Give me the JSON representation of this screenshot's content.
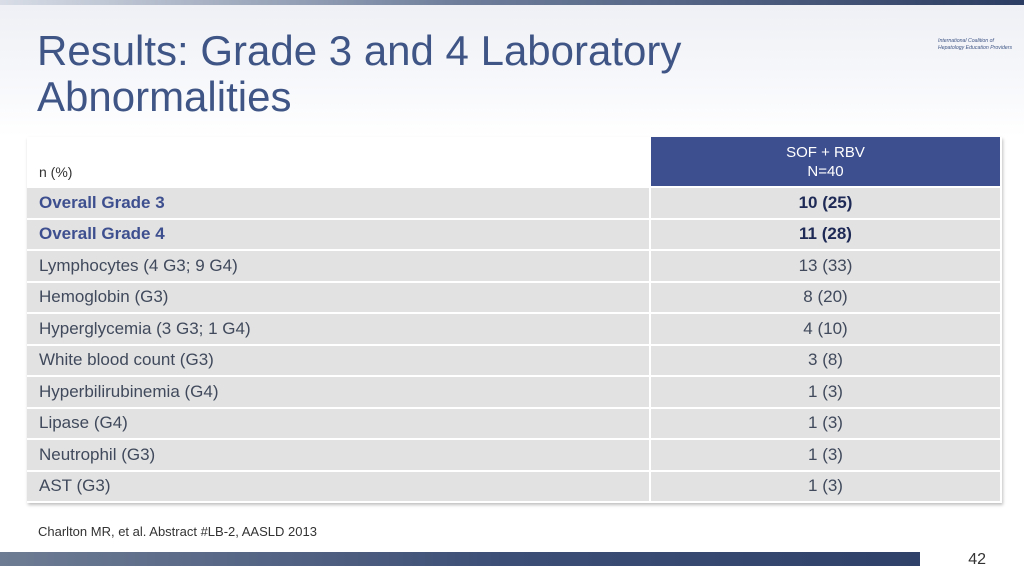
{
  "slide": {
    "title": "Results: Grade 3 and 4 Laboratory Abnormalities",
    "logo_line1": "International Coalition of",
    "logo_line2": "Hepatology Education Providers",
    "citation": "Charlton MR, et al. Abstract #LB-2, AASLD 2013",
    "page_number": "42"
  },
  "table": {
    "row_header": "n (%)",
    "column_header_line1": "SOF + RBV",
    "column_header_line2": "N=40",
    "rows": [
      {
        "label": "Overall Grade 3",
        "value": "10 (25)"
      },
      {
        "label": "Overall Grade 4",
        "value": "11 (28)"
      },
      {
        "label": "Lymphocytes (4 G3; 9 G4)",
        "value": "13 (33)"
      },
      {
        "label": "Hemoglobin (G3)",
        "value": "8 (20)"
      },
      {
        "label": "Hyperglycemia (3 G3; 1 G4)",
        "value": "4 (10)"
      },
      {
        "label": "White blood count (G3)",
        "value": "3 (8)"
      },
      {
        "label": "Hyperbilirubinemia (G4)",
        "value": "1 (3)"
      },
      {
        "label": "Lipase (G4)",
        "value": "1 (3)"
      },
      {
        "label": "Neutrophil (G3)",
        "value": "1 (3)"
      },
      {
        "label": "AST (G3)",
        "value": "1 (3)"
      }
    ]
  },
  "colors": {
    "title": "#3f5585",
    "header_fill": "#3e4f8f",
    "row_fill": "#e2e2e2"
  }
}
